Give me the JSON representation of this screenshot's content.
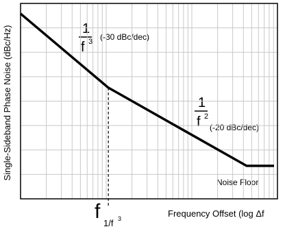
{
  "chart_data": {
    "type": "line",
    "y_label": "Single-Sideband Phase Noise (dBc/Hz)",
    "x_label": "Frequency Offset (log Δf",
    "x": [
      1,
      10.6,
      436,
      912
    ],
    "series": [
      {
        "color": "#000000",
        "values": [
          75.8,
          45.5,
          13.5,
          13.5
        ]
      }
    ],
    "xlim": [
      1,
      1000
    ],
    "ylim": [
      0,
      80
    ],
    "x_log": true,
    "grid": true,
    "xticks": [
      1,
      2,
      3,
      4,
      5,
      6,
      7,
      8,
      9,
      10,
      20,
      30,
      40,
      50,
      60,
      70,
      80,
      90,
      100,
      200,
      300,
      400,
      500,
      600,
      700,
      800,
      900,
      1000
    ],
    "yticks": [
      0,
      10,
      20,
      30,
      40,
      50,
      60,
      70,
      80
    ],
    "annotations": {
      "slope1": {
        "num": "1",
        "den": "f",
        "exp": "3",
        "text": "(-30 dBc/dec)"
      },
      "slope2": {
        "num": "1",
        "den": "f",
        "exp": "2",
        "text": "(-20 dBc/dec)"
      },
      "floor": "Noise Floor",
      "corner": {
        "f": "f",
        "sub": "1/f",
        "exp": "3"
      }
    }
  }
}
